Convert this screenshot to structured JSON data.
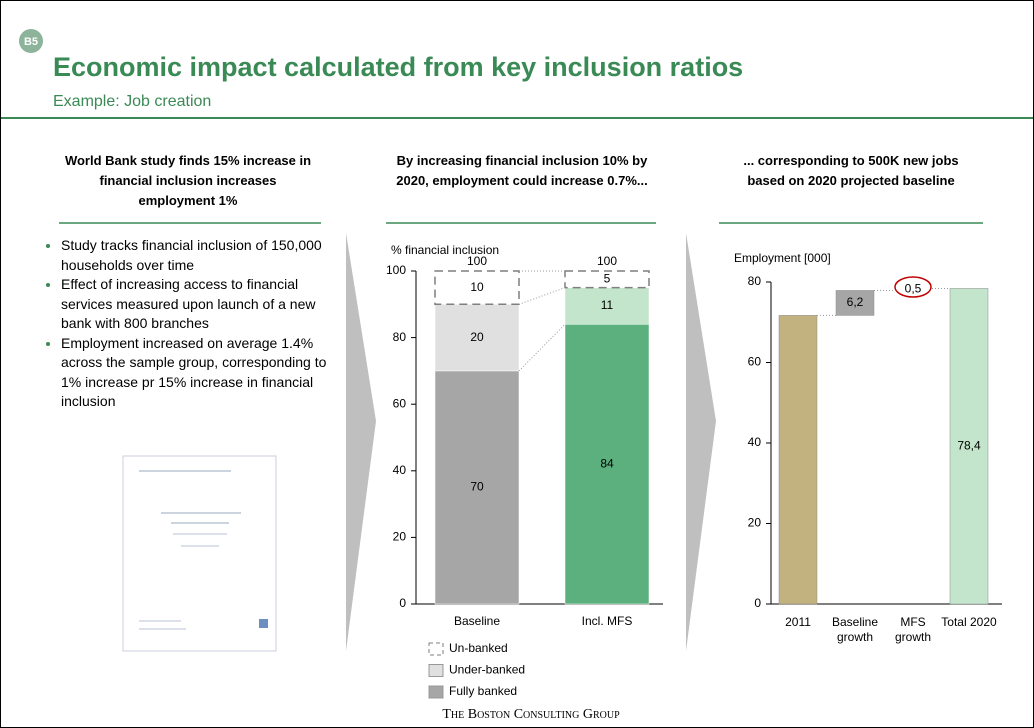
{
  "badge": "B5",
  "title": "Economic impact calculated from key inclusion ratios",
  "subtitle": "Example: Job creation",
  "headings": [
    "World Bank study finds 15% increase in financial inclusion increases employment 1%",
    "By increasing financial inclusion 10% by 2020, employment  could increase 0.7%...",
    "... corresponding to 500K new jobs based on 2020 projected baseline"
  ],
  "bullets": [
    "Study tracks financial inclusion of 150,000 households over time",
    "Effect of increasing access to financial services measured upon launch of a new bank with 800 branches",
    "Employment increased on average 1.4% across the sample group, corresponding to 1% increase pr 15% increase in financial inclusion"
  ],
  "footer": "The Boston Consulting Group",
  "chart_data": [
    {
      "type": "stacked_bar",
      "y_label": "% financial inclusion",
      "categories": [
        "Baseline",
        "Incl. MFS"
      ],
      "series": [
        {
          "name": "Fully banked",
          "color": "#a6a6a6",
          "colors": [
            "#a6a6a6",
            "#5cb07e"
          ],
          "values": [
            70,
            84
          ]
        },
        {
          "name": "Under-banked",
          "color": "#e0e0e0",
          "colors": [
            "#e0e0e0",
            "#c3e5cb"
          ],
          "values": [
            20,
            11
          ]
        },
        {
          "name": "Un-banked",
          "color": "#7f7f7f",
          "style": "dashed",
          "values": [
            10,
            5
          ]
        }
      ],
      "totals": [
        100,
        100
      ],
      "ylim": [
        0,
        100
      ],
      "yticks": [
        0,
        20,
        40,
        60,
        80,
        100
      ]
    },
    {
      "type": "waterfall",
      "y_label": "Employment [000]",
      "categories": [
        "2011",
        "Baseline growth",
        "MFS growth",
        "Total 2020"
      ],
      "measure": [
        "absolute",
        "relative",
        "relative",
        "total"
      ],
      "values": [
        71.7,
        6.2,
        0.5,
        78.4
      ],
      "value_labels": [
        null,
        "6,2",
        "0,5",
        "78,4"
      ],
      "colors": [
        "#c2b280",
        "#a6a6a6",
        "none",
        "#c3e5cb"
      ],
      "ylim": [
        0,
        80
      ],
      "yticks": [
        0,
        20,
        40,
        60,
        80
      ]
    }
  ]
}
